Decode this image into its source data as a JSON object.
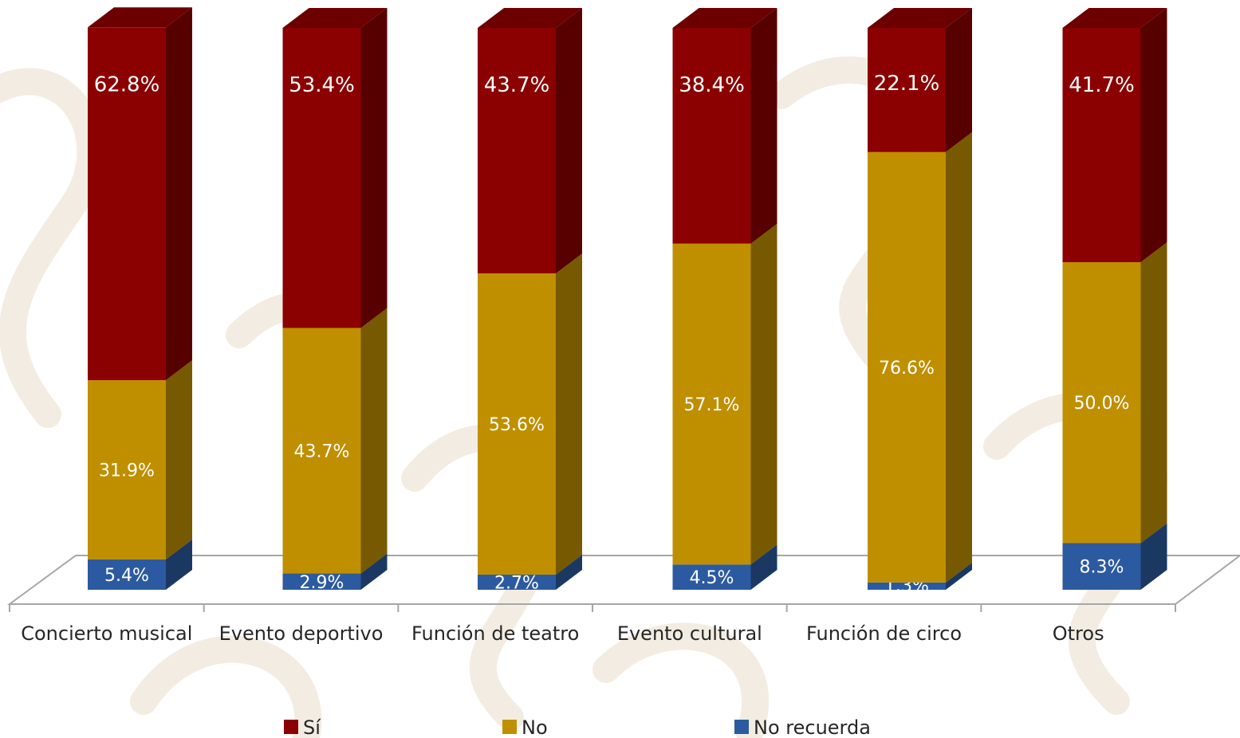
{
  "chart_data": {
    "type": "bar",
    "stacked": true,
    "percent_stacked": true,
    "three_d": true,
    "categories": [
      "Concierto musical",
      "Evento deportivo",
      "Función de teatro",
      "Evento cultural",
      "Función de circo",
      "Otros"
    ],
    "series": [
      {
        "name": "No recuerda",
        "color": "#2c5aa0",
        "values": [
          5.4,
          2.9,
          2.7,
          4.5,
          1.3,
          8.3
        ],
        "labels": [
          "5.4%",
          "2.9%",
          "2.7%",
          "4.5%",
          "1.3%",
          "8.3%"
        ]
      },
      {
        "name": "No",
        "color": "#bf8f00",
        "values": [
          31.9,
          43.7,
          53.6,
          57.1,
          76.6,
          50.0
        ],
        "labels": [
          "31.9%",
          "43.7%",
          "53.6%",
          "57.1%",
          "76.6%",
          "50.0%"
        ]
      },
      {
        "name": "Sí",
        "color": "#8b0000",
        "values": [
          62.8,
          53.4,
          43.7,
          38.4,
          22.1,
          41.7
        ],
        "labels": [
          "62.8%",
          "53.4%",
          "43.7%",
          "38.4%",
          "22.1%",
          "41.7%"
        ]
      }
    ],
    "legend": {
      "position": "bottom",
      "order": [
        "Sí",
        "No",
        "No recuerda"
      ]
    },
    "ylim": [
      0,
      100
    ],
    "grid": false,
    "background_watermark": true
  }
}
